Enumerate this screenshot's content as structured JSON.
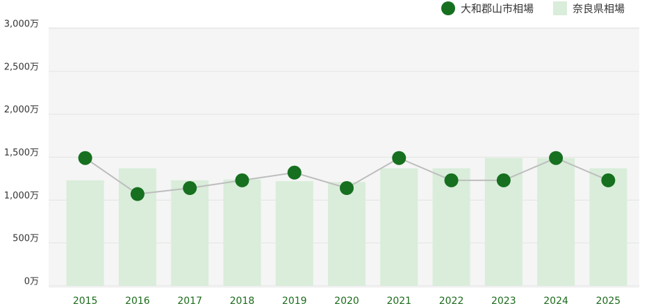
{
  "chart_data": {
    "type": "bar",
    "categories": [
      "2015",
      "2016",
      "2017",
      "2018",
      "2019",
      "2020",
      "2021",
      "2022",
      "2023",
      "2024",
      "2025"
    ],
    "series": [
      {
        "name": "大和郡山市相場",
        "type": "line",
        "color": "#16701f",
        "line_color": "#bdbdbd",
        "values": [
          1490,
          1070,
          1140,
          1230,
          1320,
          1140,
          1490,
          1230,
          1230,
          1490,
          1230
        ]
      },
      {
        "name": "奈良県相場",
        "type": "bar",
        "color": "#d9edda",
        "values": [
          1230,
          1370,
          1230,
          1240,
          1220,
          1210,
          1370,
          1370,
          1490,
          1490,
          1370
        ]
      }
    ],
    "ylim": [
      0,
      3000
    ],
    "yticks": [
      {
        "value": 0,
        "label": "0万"
      },
      {
        "value": 500,
        "label": "500万"
      },
      {
        "value": 1000,
        "label": "1,000万"
      },
      {
        "value": 1500,
        "label": "1,500万"
      },
      {
        "value": 2000,
        "label": "2,000万"
      },
      {
        "value": 2500,
        "label": "2,500万"
      },
      {
        "value": 3000,
        "label": "3,000万"
      }
    ],
    "grid": true,
    "legend": "top-right"
  }
}
